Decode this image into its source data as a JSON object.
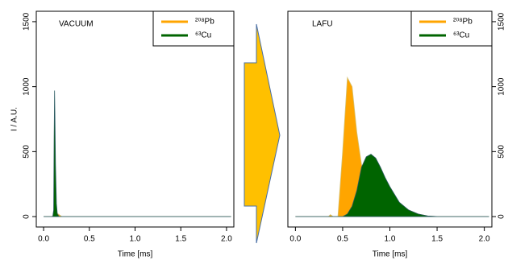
{
  "chart_data": [
    {
      "type": "area",
      "title": "VACUUM",
      "xlabel": "Time [ms]",
      "ylabel": "I / A.U.",
      "yaxis_side": "left",
      "legend": "top right",
      "x": [
        0,
        0.08,
        0.1,
        0.11,
        0.115,
        0.12,
        0.125,
        0.13,
        0.14,
        0.15,
        0.17,
        0.2,
        2.05
      ],
      "series": [
        {
          "name": "²⁰⁸Pb",
          "color": "#ffa500",
          "values": [
            0,
            0,
            5,
            15,
            20,
            25,
            28,
            30,
            28,
            25,
            15,
            0,
            0
          ]
        },
        {
          "name": "⁶³Cu",
          "color": "#006400",
          "values": [
            0,
            0,
            0,
            50,
            600,
            970,
            700,
            400,
            100,
            20,
            0,
            0,
            0
          ]
        }
      ],
      "xlim": [
        -0.08,
        2.08
      ],
      "ylim": [
        -80,
        1580
      ],
      "xticks": [
        {
          "value": 0,
          "label": "0.0"
        },
        0.5,
        {
          "value": 1,
          "label": "1.0"
        },
        1.5,
        {
          "value": 2,
          "label": "2.0"
        }
      ],
      "yticks": [
        0,
        500,
        1000,
        1500
      ]
    },
    {
      "type": "area",
      "title": "LAFU",
      "xlabel": "Time [ms]",
      "yaxis_side": "right",
      "legend": "top right",
      "x": [
        0,
        0.35,
        0.37,
        0.4,
        0.45,
        0.5,
        0.55,
        0.6,
        0.65,
        0.7,
        0.75,
        0.8,
        0.85,
        0.9,
        0.95,
        1.0,
        1.1,
        1.2,
        1.3,
        1.4,
        1.5,
        2.05
      ],
      "series": [
        {
          "name": "²⁰⁸Pb",
          "color": "#ffa500",
          "values": [
            0,
            0,
            15,
            0,
            0,
            500,
            1070,
            1000,
            650,
            400,
            330,
            300,
            280,
            250,
            200,
            160,
            100,
            50,
            20,
            5,
            0,
            0
          ]
        },
        {
          "name": "⁶³Cu",
          "color": "#006400",
          "values": [
            0,
            0,
            0,
            0,
            0,
            0,
            20,
            80,
            200,
            380,
            460,
            480,
            450,
            380,
            300,
            230,
            110,
            50,
            20,
            5,
            0,
            0
          ]
        }
      ],
      "xlim": [
        -0.08,
        2.08
      ],
      "ylim": [
        -80,
        1580
      ],
      "xticks": [
        {
          "value": 0,
          "label": "0.0"
        },
        0.5,
        {
          "value": 1,
          "label": "1.0"
        },
        1.5,
        {
          "value": 2,
          "label": "2.0"
        }
      ],
      "yticks": [
        0,
        500,
        1000,
        1500
      ]
    }
  ]
}
